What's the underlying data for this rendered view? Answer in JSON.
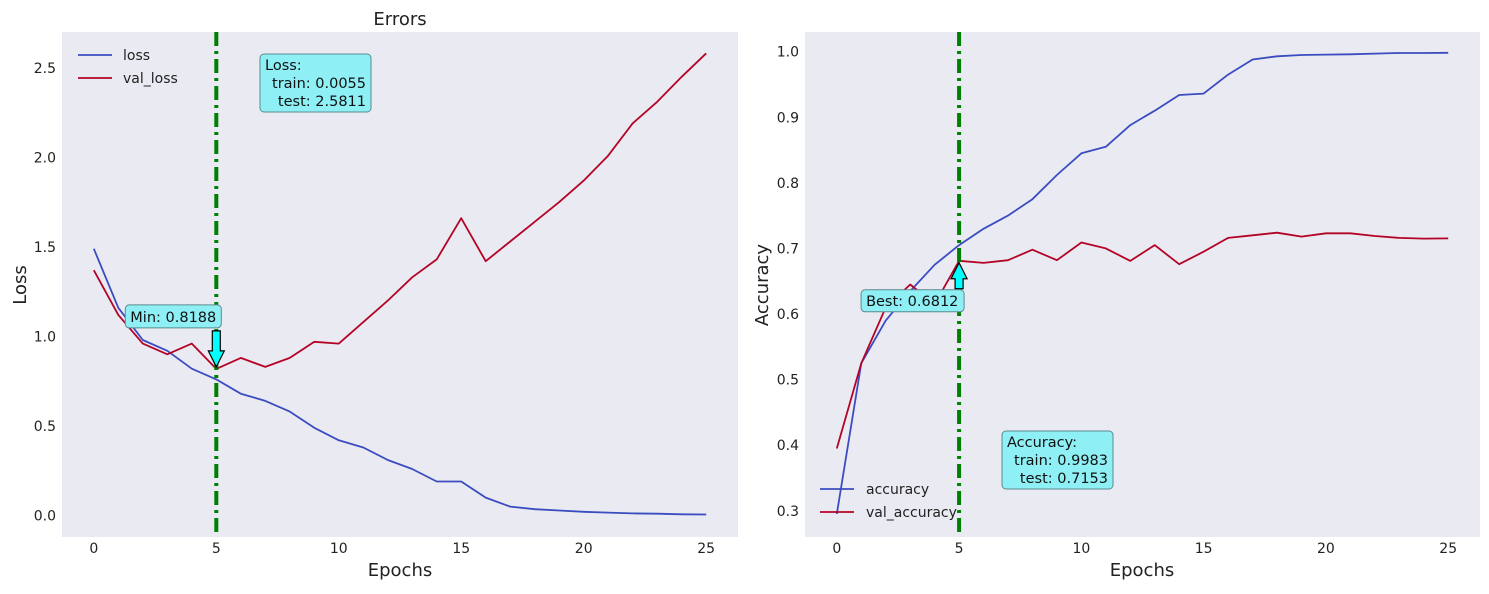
{
  "chart_data": [
    {
      "type": "line",
      "title": "Errors",
      "xlabel": "Epochs",
      "ylabel": "Loss",
      "xlim": [
        -1.3,
        26.3
      ],
      "ylim": [
        -0.12,
        2.7
      ],
      "xticks": [
        0,
        5,
        10,
        15,
        20,
        25
      ],
      "yticks": [
        0.0,
        0.5,
        1.0,
        1.5,
        2.0,
        2.5
      ],
      "ytick_labels": [
        "0.0",
        "0.5",
        "1.0",
        "1.5",
        "2.0",
        "2.5"
      ],
      "x": [
        0,
        1,
        2,
        3,
        4,
        5,
        6,
        7,
        8,
        9,
        10,
        11,
        12,
        13,
        14,
        15,
        16,
        17,
        18,
        19,
        20,
        21,
        22,
        23,
        24,
        25
      ],
      "series": [
        {
          "name": "loss",
          "color": "#3b4cc0",
          "values": [
            1.49,
            1.16,
            0.98,
            0.92,
            0.82,
            0.76,
            0.68,
            0.64,
            0.58,
            0.49,
            0.42,
            0.38,
            0.31,
            0.26,
            0.19,
            0.19,
            0.1,
            0.05,
            0.035,
            0.028,
            0.021,
            0.016,
            0.012,
            0.01,
            0.007,
            0.0055
          ]
        },
        {
          "name": "val_loss",
          "color": "#b40426",
          "values": [
            1.37,
            1.12,
            0.96,
            0.9,
            0.96,
            0.8188,
            0.88,
            0.83,
            0.88,
            0.97,
            0.96,
            1.08,
            1.2,
            1.33,
            1.43,
            1.66,
            1.42,
            1.53,
            1.64,
            1.75,
            1.87,
            2.01,
            2.19,
            2.31,
            2.45,
            2.5811
          ]
        }
      ],
      "legend": "top-left",
      "grid": false,
      "vline_x": 5,
      "vline_color": "#008000",
      "marker": {
        "text": "Min: 0.8188",
        "x": 5,
        "y": 0.8188,
        "arrow": "down"
      },
      "info_box": {
        "lines": [
          "Loss:",
          "train: 0.0055",
          "test: 2.5811"
        ],
        "position": "top"
      }
    },
    {
      "type": "line",
      "title": "",
      "xlabel": "Epochs",
      "ylabel": "Accuracy",
      "xlim": [
        -1.3,
        26.3
      ],
      "ylim": [
        0.26,
        1.03
      ],
      "xticks": [
        0,
        5,
        10,
        15,
        20,
        25
      ],
      "yticks": [
        0.3,
        0.4,
        0.5,
        0.6,
        0.7,
        0.8,
        0.9,
        1.0
      ],
      "ytick_labels": [
        "0.3",
        "0.4",
        "0.5",
        "0.6",
        "0.7",
        "0.8",
        "0.9",
        "1.0"
      ],
      "x": [
        0,
        1,
        2,
        3,
        4,
        5,
        6,
        7,
        8,
        9,
        10,
        11,
        12,
        13,
        14,
        15,
        16,
        17,
        18,
        19,
        20,
        21,
        22,
        23,
        24,
        25
      ],
      "series": [
        {
          "name": "accuracy",
          "color": "#3b4cc0",
          "values": [
            0.295,
            0.525,
            0.59,
            0.635,
            0.675,
            0.705,
            0.73,
            0.75,
            0.775,
            0.812,
            0.845,
            0.855,
            0.888,
            0.91,
            0.934,
            0.936,
            0.965,
            0.988,
            0.993,
            0.995,
            0.9955,
            0.996,
            0.997,
            0.998,
            0.998,
            0.9983
          ]
        },
        {
          "name": "val_accuracy",
          "color": "#b40426",
          "values": [
            0.395,
            0.525,
            0.61,
            0.645,
            0.615,
            0.6812,
            0.678,
            0.682,
            0.698,
            0.682,
            0.709,
            0.7,
            0.681,
            0.705,
            0.676,
            0.695,
            0.716,
            0.72,
            0.724,
            0.718,
            0.723,
            0.723,
            0.719,
            0.716,
            0.715,
            0.7153
          ]
        }
      ],
      "legend": "bottom-left",
      "grid": false,
      "vline_x": 5,
      "vline_color": "#008000",
      "marker": {
        "text": "Best: 0.6812",
        "x": 5,
        "y": 0.6812,
        "arrow": "up"
      },
      "info_box": {
        "lines": [
          "Accuracy:",
          "train: 0.9983",
          "test:  0.7153"
        ],
        "position": "bottom"
      }
    }
  ]
}
